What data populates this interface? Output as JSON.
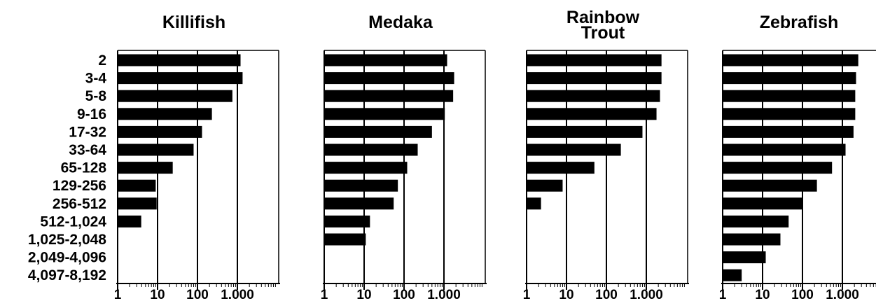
{
  "chart_data": {
    "type": "bar",
    "orientation": "horizontal",
    "x_scale": "log",
    "xlim": [
      1,
      5000
    ],
    "x_ticks": [
      1,
      10,
      100,
      1000
    ],
    "x_tick_labels": [
      "1",
      "10",
      "100",
      "1.000"
    ],
    "grid": "vertical lines at 10, 100 and 1.000",
    "bar_color": "#000000",
    "categories": [
      "2",
      "3-4",
      "5-8",
      "9-16",
      "17-32",
      "33-64",
      "65-128",
      "129-256",
      "256-512",
      "512-1,024",
      "1,025-2,048",
      "2,049-4,096",
      "4,097-8,192"
    ],
    "panels": [
      {
        "title_lines": [
          "Killifish"
        ],
        "values": [
          1200,
          1350,
          750,
          230,
          130,
          80,
          24,
          9,
          9.5,
          3.9,
          null,
          null,
          null
        ]
      },
      {
        "title_lines": [
          "Medaka"
        ],
        "values": [
          1200,
          1800,
          1700,
          1050,
          500,
          220,
          120,
          70,
          55,
          14,
          11,
          null,
          null
        ]
      },
      {
        "title_lines": [
          "Rainbow",
          "Trout"
        ],
        "values": [
          2400,
          2400,
          2200,
          1800,
          800,
          230,
          50,
          8,
          2.3,
          null,
          null,
          null,
          null
        ]
      },
      {
        "title_lines": [
          "Zebrafish"
        ],
        "values": [
          2500,
          2200,
          2100,
          2100,
          1900,
          1200,
          550,
          230,
          100,
          45,
          28,
          12,
          3
        ]
      }
    ]
  }
}
